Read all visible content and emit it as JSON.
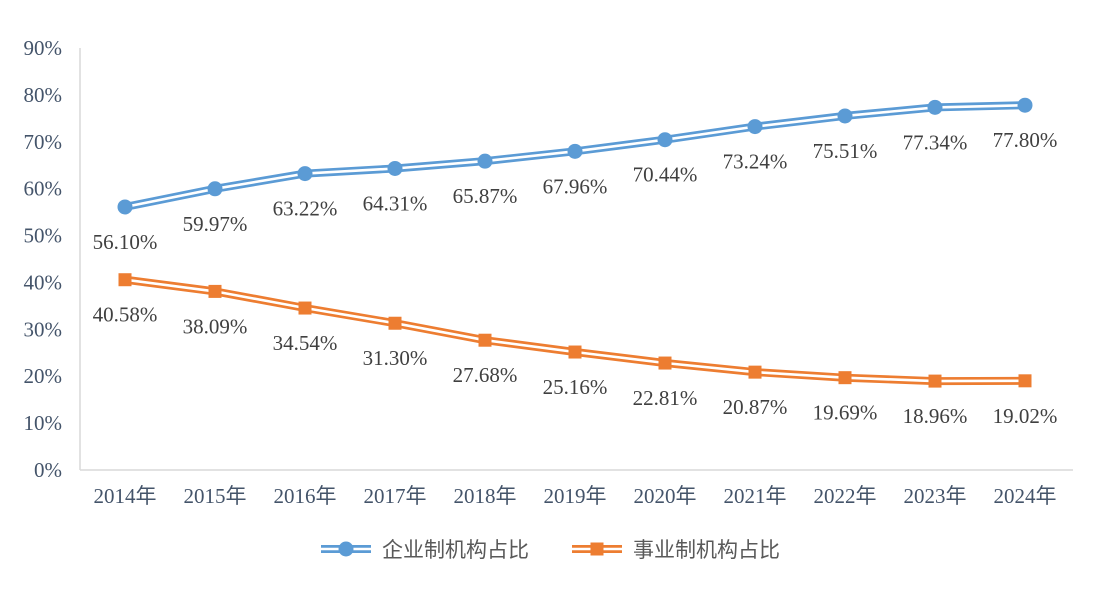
{
  "chart_data": {
    "type": "line",
    "title": "",
    "categories": [
      "2014年",
      "2015年",
      "2016年",
      "2017年",
      "2018年",
      "2019年",
      "2020年",
      "2021年",
      "2022年",
      "2023年",
      "2024年"
    ],
    "series": [
      {
        "name": "企业制机构占比",
        "color": "#5B9BD5",
        "marker": "circle",
        "values": [
          56.1,
          59.97,
          63.22,
          64.31,
          65.87,
          67.96,
          70.44,
          73.24,
          75.51,
          77.34,
          77.8
        ],
        "labels": [
          "56.10%",
          "59.97%",
          "63.22%",
          "64.31%",
          "65.87%",
          "67.96%",
          "70.44%",
          "73.24%",
          "75.51%",
          "77.34%",
          "77.80%"
        ]
      },
      {
        "name": "事业制机构占比",
        "color": "#ED7D31",
        "marker": "square",
        "values": [
          40.58,
          38.09,
          34.54,
          31.3,
          27.68,
          25.16,
          22.81,
          20.87,
          19.69,
          18.96,
          19.02
        ],
        "labels": [
          "40.58%",
          "38.09%",
          "34.54%",
          "31.30%",
          "27.68%",
          "25.16%",
          "22.81%",
          "20.87%",
          "19.69%",
          "18.96%",
          "19.02%"
        ]
      }
    ],
    "y_axis": {
      "min": 0,
      "max": 90,
      "step": 10,
      "tick_labels": [
        "0%",
        "10%",
        "20%",
        "30%",
        "40%",
        "50%",
        "60%",
        "70%",
        "80%",
        "90%"
      ]
    },
    "x_axis": {
      "label": ""
    },
    "grid": false,
    "legend_position": "bottom",
    "colors": {
      "axis_line": "#D9D9D9",
      "tick_text": "#44546A",
      "data_label_text": "#404040",
      "legend_text": "#595959",
      "line_inner_stripe": "#FFFFFF"
    }
  }
}
